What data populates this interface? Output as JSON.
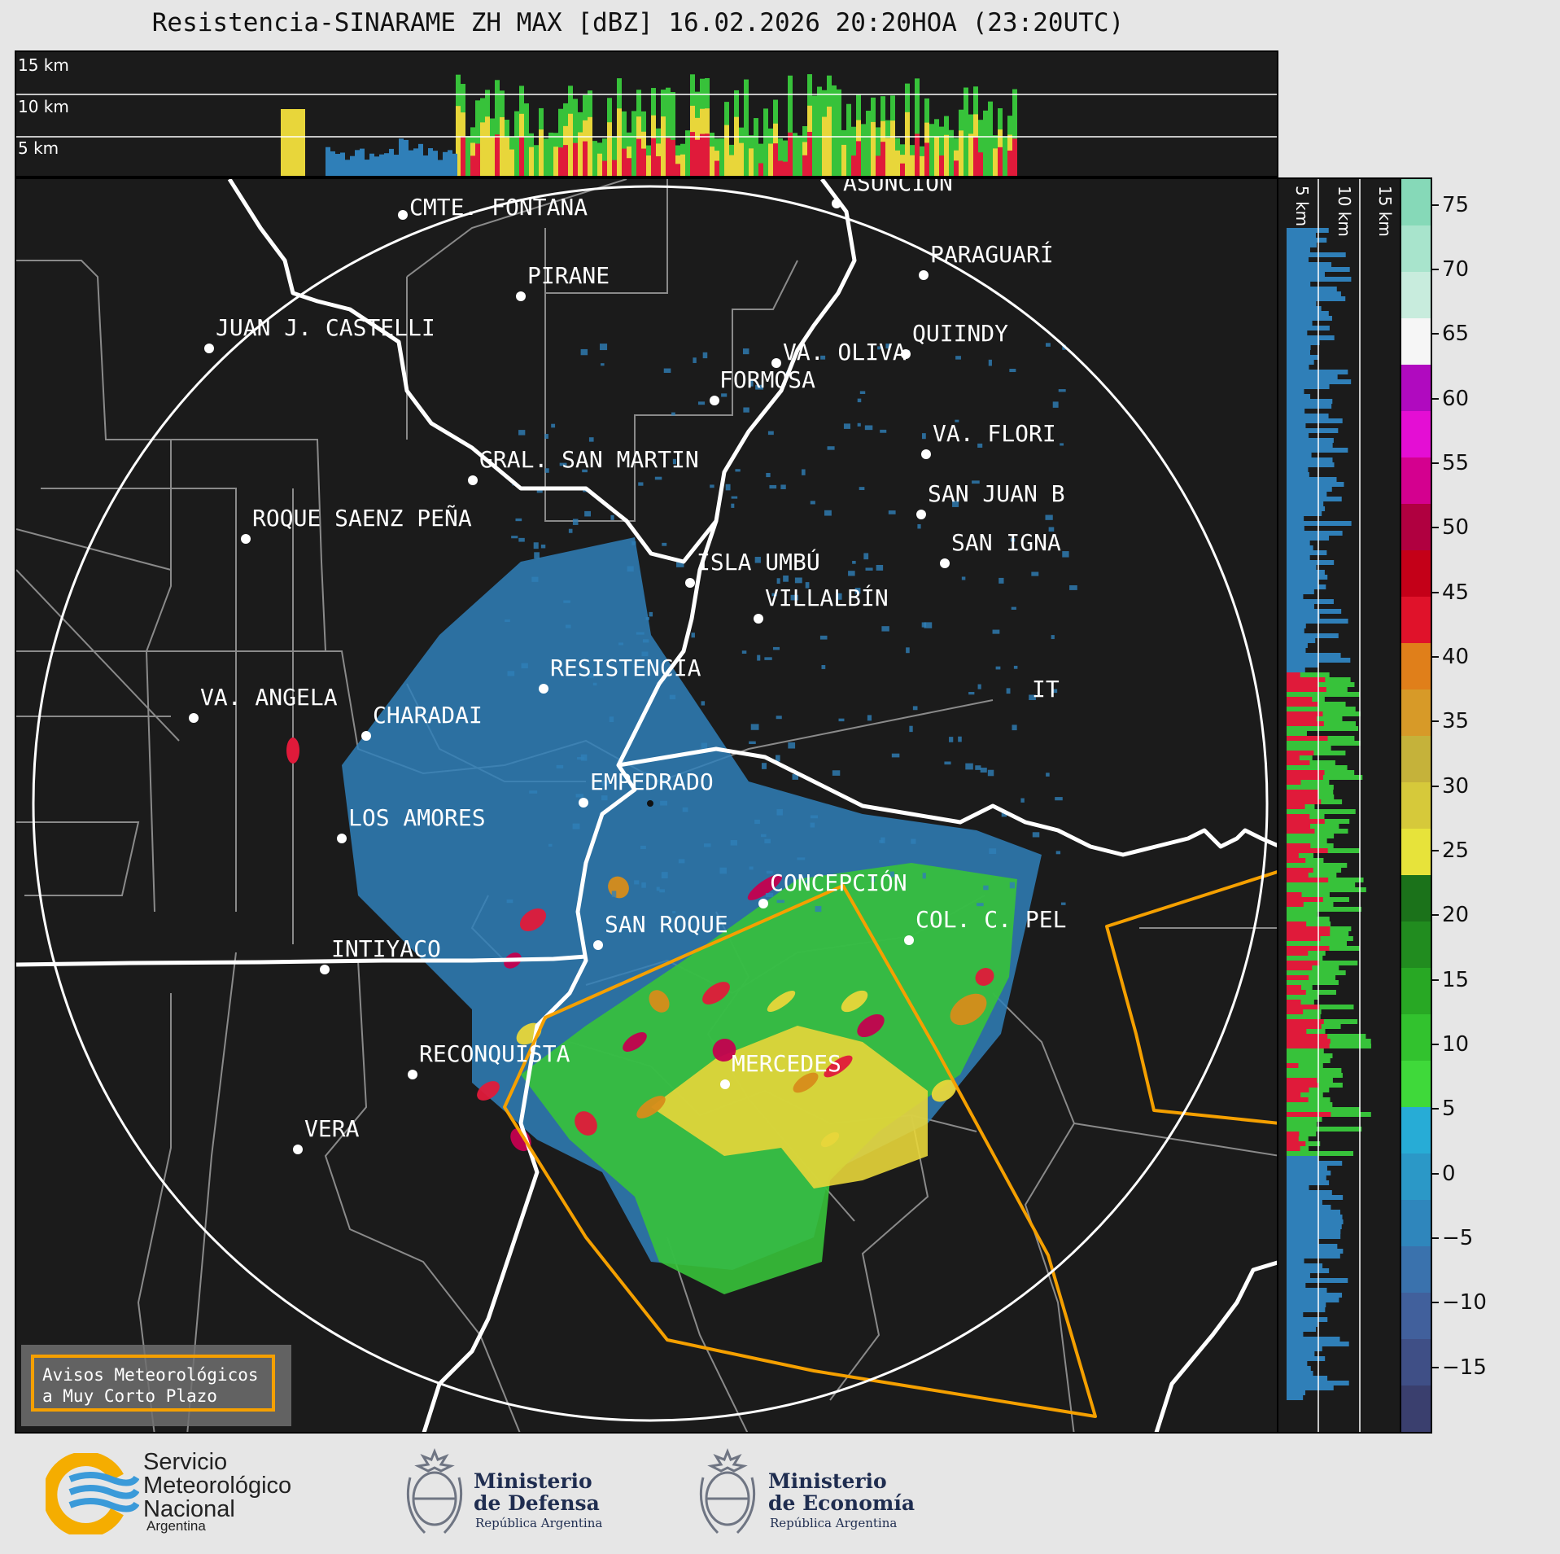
{
  "title": "Resistencia-SINARAME ZH MAX [dBZ] 16.02.2026 20:20HOA (23:20UTC)",
  "top_panel": {
    "height_labels": [
      "15 km",
      "10 km",
      "5 km"
    ]
  },
  "side_panel": {
    "height_labels": [
      "5 km",
      "10 km",
      "15 km"
    ]
  },
  "colorbar": {
    "unit": "dBZ",
    "ticks": [
      "75",
      "70",
      "65",
      "60",
      "55",
      "50",
      "45",
      "40",
      "35",
      "30",
      "25",
      "20",
      "15",
      "10",
      "5",
      "0",
      "−5",
      "−10",
      "−15"
    ],
    "range": [
      -20,
      77
    ]
  },
  "cities": [
    {
      "name": "CMTE. FONTANA"
    },
    {
      "name": "ASUNCIÓN"
    },
    {
      "name": "PIRANE"
    },
    {
      "name": "PARAGUARÍ"
    },
    {
      "name": "JUAN J. CASTELLI"
    },
    {
      "name": "VA. OLIVA"
    },
    {
      "name": "QUIINDY"
    },
    {
      "name": "FORMOSA"
    },
    {
      "name": "VA. FLORI"
    },
    {
      "name": "GRAL. SAN MARTIN"
    },
    {
      "name": "SAN JUAN B"
    },
    {
      "name": "ROQUE SAENZ PEÑA"
    },
    {
      "name": "SAN IGNA"
    },
    {
      "name": "ISLA UMBÚ"
    },
    {
      "name": "VILLALBÍN"
    },
    {
      "name": "RESISTENCIA"
    },
    {
      "name": "VA. ANGELA"
    },
    {
      "name": "CHARADAI"
    },
    {
      "name": "IT"
    },
    {
      "name": "EMPEDRADO"
    },
    {
      "name": "LOS AMORES"
    },
    {
      "name": "CONCEPCIÓN"
    },
    {
      "name": "SAN ROQUE"
    },
    {
      "name": "COL. C. PEL"
    },
    {
      "name": "INTIYACO"
    },
    {
      "name": "RECONQUISTA"
    },
    {
      "name": "MERCEDES"
    },
    {
      "name": "VERA"
    }
  ],
  "legend": {
    "line1": "Avisos Meteorológicos",
    "line2": "a Muy Corto Plazo"
  },
  "footer": {
    "smn": {
      "line1": "Servicio",
      "line2": "Meteorológico",
      "line3": "Nacional",
      "line4": "Argentina"
    },
    "defensa": {
      "line1": "Ministerio",
      "line2": "de Defensa",
      "sub": "República Argentina"
    },
    "economia": {
      "line1": "Ministerio",
      "line2": "de Economía",
      "sub": "República Argentina"
    }
  },
  "colors": {
    "background": "#1b1b1b",
    "warning_polygon": "#f5a000",
    "rivers": "#ffffff",
    "borders": "#8a8a8a"
  }
}
